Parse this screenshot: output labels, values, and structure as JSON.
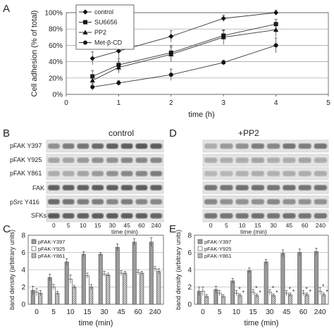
{
  "panels": {
    "A": "A",
    "B": "B",
    "C": "C",
    "D": "D",
    "E": "E"
  },
  "blot_B": {
    "title": "control",
    "rows": [
      "pFAK Y397",
      "pFAK Y925",
      "pFAK Y861",
      "FAK",
      "pSrc Y416",
      "SFKs"
    ],
    "lanes": [
      "0",
      "5",
      "10",
      "15",
      "30",
      "45",
      "60",
      "240"
    ],
    "xlabel": "time (min)"
  },
  "blot_D": {
    "title": "+PP2",
    "lanes": [
      "0",
      "5",
      "10",
      "15",
      "30",
      "45",
      "60",
      "240"
    ],
    "xlabel": "time (min)"
  },
  "chart_data": [
    {
      "panel": "A",
      "type": "line",
      "title": "",
      "xlabel": "time (h)",
      "ylabel": "Cell adhesion (% of total)",
      "xlim": [
        0,
        5
      ],
      "ylim": [
        0,
        100
      ],
      "xticks": [
        "0",
        "1",
        "2",
        "3",
        "4",
        "5"
      ],
      "yticks": [
        "0%",
        "20%",
        "40%",
        "60%",
        "80%",
        "100%"
      ],
      "grid": true,
      "legend": "top-left",
      "x": [
        0.5,
        1,
        2,
        3,
        4
      ],
      "series": [
        {
          "name": "control",
          "marker": "diamond",
          "values": [
            44,
            53,
            71,
            93,
            100
          ],
          "errors": [
            8,
            8,
            7,
            4,
            3
          ]
        },
        {
          "name": "SU6656",
          "marker": "square",
          "values": [
            22,
            36,
            51,
            72,
            86
          ],
          "errors": [
            7,
            8,
            9,
            6,
            6
          ]
        },
        {
          "name": "PP2",
          "marker": "triangle",
          "values": [
            17,
            33,
            49,
            70,
            79
          ],
          "errors": [
            6,
            7,
            9,
            9,
            8
          ]
        },
        {
          "name": "Met-β-CD",
          "marker": "circle",
          "values": [
            9,
            14,
            24,
            39,
            60
          ],
          "errors": [
            4,
            3,
            7,
            3,
            9
          ]
        }
      ]
    },
    {
      "panel": "C",
      "type": "bar",
      "xlabel": "time (min)",
      "ylabel": "band density (arbitrary units)",
      "categories": [
        "0",
        "5",
        "10",
        "15",
        "30",
        "45",
        "60",
        "240"
      ],
      "ylim": [
        0,
        8
      ],
      "yticks": [
        "0",
        "2",
        "4",
        "6",
        "8"
      ],
      "grid": true,
      "legend": "top-left",
      "series": [
        {
          "name": "pFAK-Y397",
          "fill": "#9a9a9a",
          "values": [
            1.6,
            3.1,
            4.9,
            5.8,
            5.8,
            6.6,
            7.2,
            7.2
          ],
          "errors": [
            0.5,
            0.4,
            0.4,
            0.3,
            0.2,
            0.4,
            0.4,
            0.5
          ]
        },
        {
          "name": "pFAK-Y925",
          "fill": "#ffffff",
          "values": [
            1.4,
            2.0,
            2.9,
            3.3,
            3.5,
            3.6,
            3.7,
            4.1
          ],
          "errors": [
            0.4,
            0.3,
            0.5,
            0.3,
            0.3,
            0.3,
            0.3,
            0.3
          ]
        },
        {
          "name": "pFAK-Y861",
          "fill": "#d0d0d0",
          "values": [
            1.3,
            1.3,
            2.0,
            2.0,
            3.4,
            3.6,
            3.6,
            3.8
          ],
          "errors": [
            0.3,
            0.2,
            0.2,
            0.3,
            0.2,
            0.2,
            0.2,
            0.3
          ]
        }
      ]
    },
    {
      "panel": "E",
      "type": "bar",
      "xlabel": "time (min)",
      "ylabel": "band density (arbitrary units)",
      "categories": [
        "0",
        "5",
        "10",
        "15",
        "30",
        "45",
        "60",
        "240"
      ],
      "ylim": [
        0,
        8
      ],
      "yticks": [
        "0",
        "2",
        "4",
        "6",
        "8"
      ],
      "grid": true,
      "legend": "top-left",
      "annotation": "*",
      "series": [
        {
          "name": "pFAK-Y397",
          "fill": "#9a9a9a",
          "values": [
            1.5,
            1.7,
            2.7,
            3.9,
            4.9,
            5.9,
            6.0,
            6.1
          ],
          "errors": [
            0.5,
            0.4,
            0.3,
            0.3,
            0.3,
            0.4,
            0.4,
            0.4
          ]
        },
        {
          "name": "pFAK-Y925",
          "fill": "#ffffff",
          "values": [
            1.5,
            1.3,
            1.3,
            1.4,
            1.4,
            1.3,
            1.3,
            1.5
          ],
          "errors": [
            0.5,
            0.3,
            0.3,
            0.3,
            0.3,
            0.3,
            0.3,
            0.4
          ]
        },
        {
          "name": "pFAK-Y861",
          "fill": "#d0d0d0",
          "values": [
            0.9,
            0.9,
            1.0,
            1.0,
            1.0,
            1.1,
            1.1,
            1.1
          ],
          "errors": [
            0.2,
            0.2,
            0.2,
            0.2,
            0.2,
            0.2,
            0.2,
            0.2
          ]
        }
      ],
      "significant": [
        [
          false,
          false,
          true,
          true,
          true,
          true,
          true,
          true
        ],
        [
          false,
          false,
          true,
          true,
          true,
          true,
          true,
          true
        ]
      ]
    }
  ]
}
